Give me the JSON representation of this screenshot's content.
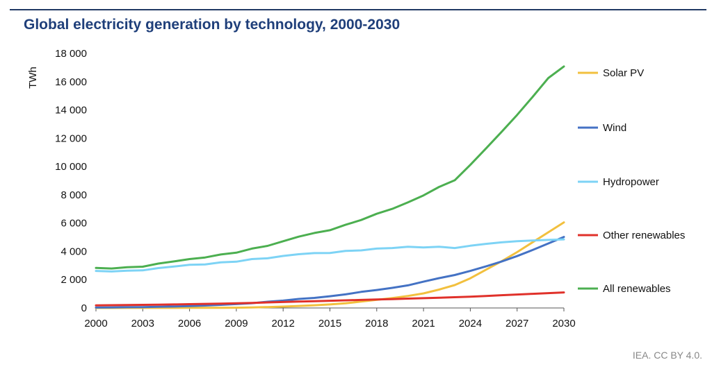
{
  "title": "Global electricity generation by technology, 2000-2030",
  "source": "IEA. CC BY 4.0.",
  "chart_data": {
    "type": "line",
    "ylabel": "TWh",
    "xlabel": "",
    "xlim": [
      2000,
      2030
    ],
    "ylim": [
      0,
      18000
    ],
    "x_ticks": [
      2000,
      2003,
      2006,
      2009,
      2012,
      2015,
      2018,
      2021,
      2024,
      2027,
      2030
    ],
    "x_tick_labels": [
      "2000",
      "2003",
      "2006",
      "2009",
      "2012",
      "2015",
      "2018",
      "2021",
      "2024",
      "2027",
      "2030"
    ],
    "y_ticks": [
      0,
      2000,
      4000,
      6000,
      8000,
      10000,
      12000,
      14000,
      16000,
      18000
    ],
    "y_tick_labels": [
      "0",
      "2 000",
      "4 000",
      "6 000",
      "8 000",
      "10 000",
      "12 000",
      "14 000",
      "16 000",
      "18 000"
    ],
    "grid": false,
    "legend_position": "right",
    "x": [
      2000,
      2001,
      2002,
      2003,
      2004,
      2005,
      2006,
      2007,
      2008,
      2009,
      2010,
      2011,
      2012,
      2013,
      2014,
      2015,
      2016,
      2017,
      2018,
      2019,
      2020,
      2021,
      2022,
      2023,
      2024,
      2025,
      2026,
      2027,
      2028,
      2029,
      2030
    ],
    "series": [
      {
        "name": "Solar PV",
        "color": "#f2c03e",
        "values": [
          1,
          2,
          3,
          4,
          5,
          6,
          8,
          10,
          14,
          22,
          34,
          65,
          100,
          140,
          190,
          250,
          330,
          450,
          580,
          700,
          850,
          1030,
          1300,
          1620,
          2100,
          2700,
          3300,
          3950,
          4650,
          5350,
          6050
        ]
      },
      {
        "name": "Wind",
        "color": "#4472c4",
        "values": [
          30,
          40,
          55,
          65,
          85,
          105,
          135,
          170,
          220,
          275,
          340,
          440,
          520,
          640,
          710,
          830,
          960,
          1140,
          1270,
          1420,
          1600,
          1860,
          2110,
          2330,
          2620,
          2940,
          3280,
          3670,
          4100,
          4560,
          5020
        ]
      },
      {
        "name": "Hydropower",
        "color": "#7dd3f5",
        "values": [
          2620,
          2580,
          2640,
          2660,
          2820,
          2930,
          3050,
          3080,
          3220,
          3270,
          3460,
          3510,
          3680,
          3800,
          3880,
          3890,
          4030,
          4070,
          4200,
          4240,
          4330,
          4280,
          4330,
          4240,
          4400,
          4530,
          4640,
          4720,
          4770,
          4810,
          4850
        ]
      },
      {
        "name": "Other renewables",
        "color": "#e0312a",
        "values": [
          180,
          195,
          210,
          220,
          235,
          250,
          270,
          290,
          310,
          330,
          360,
          390,
          420,
          450,
          480,
          510,
          540,
          570,
          600,
          630,
          660,
          690,
          720,
          760,
          800,
          850,
          900,
          950,
          1000,
          1050,
          1100
        ]
      },
      {
        "name": "All renewables",
        "color": "#4caf50",
        "values": [
          2830,
          2790,
          2880,
          2920,
          3140,
          3290,
          3460,
          3570,
          3780,
          3910,
          4200,
          4390,
          4720,
          5040,
          5300,
          5500,
          5880,
          6220,
          6660,
          7010,
          7470,
          7960,
          8560,
          9030,
          10120,
          11270,
          12450,
          13650,
          14930,
          16260,
          17080
        ]
      }
    ]
  }
}
